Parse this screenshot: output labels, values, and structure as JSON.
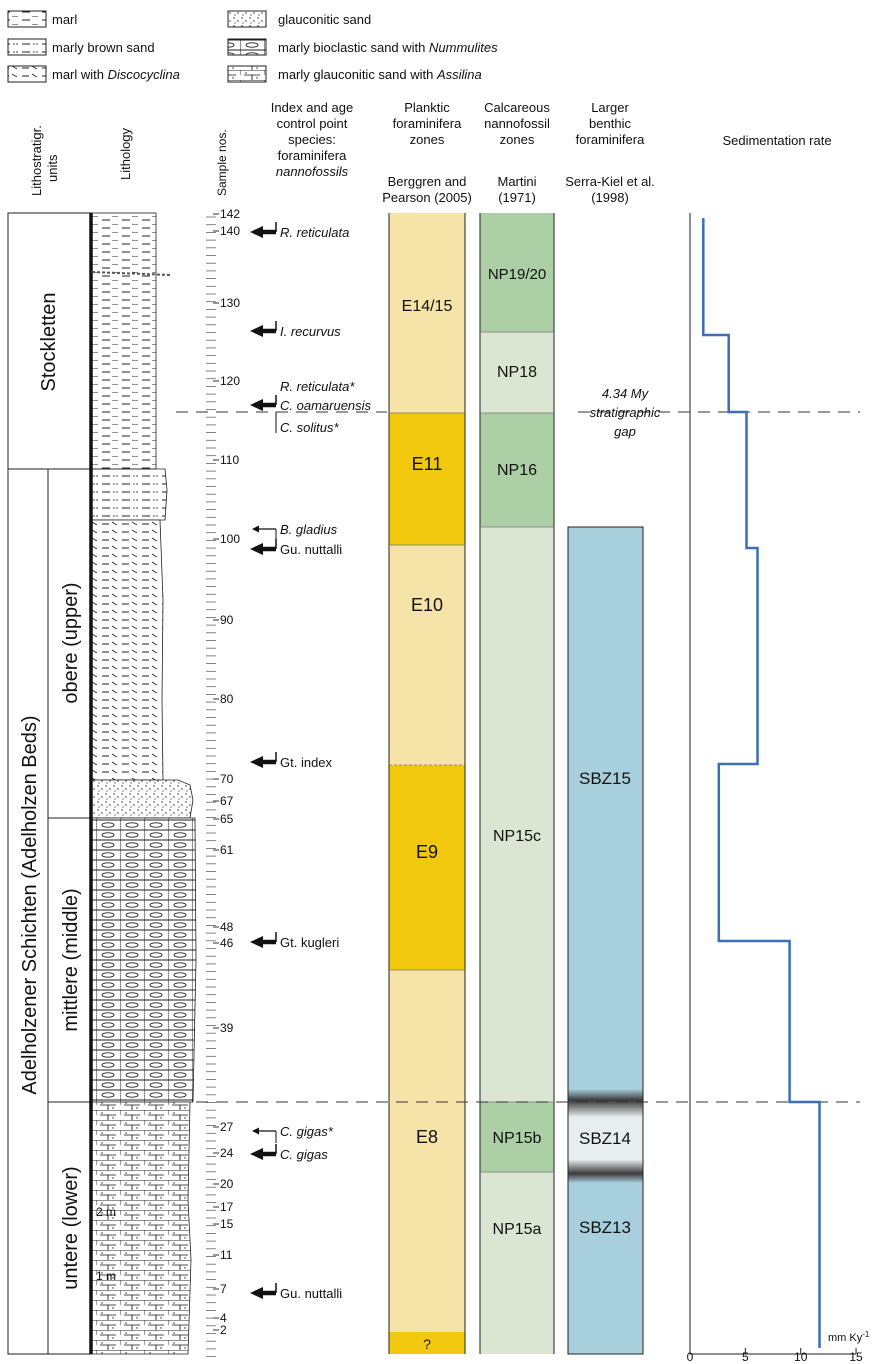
{
  "legend": [
    {
      "pattern": "marl",
      "label": "marl"
    },
    {
      "pattern": "marly-brown-sand",
      "label": "marly brown sand"
    },
    {
      "pattern": "marl-discocyclina",
      "label": "marl with ",
      "italic": "Discocyclina"
    },
    {
      "pattern": "glauconitic-sand",
      "label": "glauconitic sand"
    },
    {
      "pattern": "bioclastic",
      "label": "marly bioclastic sand with ",
      "italic": "Nummulites"
    },
    {
      "pattern": "glauc-assilina",
      "label": "marly glauconitic sand with ",
      "italic": "Assilina"
    }
  ],
  "headers": {
    "litho_units": [
      "Lithostratigr.",
      "units"
    ],
    "lithology": "Lithology",
    "sample_nos": "Sample nos.",
    "index": [
      "Index and age",
      "control point",
      "species:",
      "foraminifera"
    ],
    "index_italic": "nannofossils",
    "planktic": [
      "Planktic",
      "foraminifera",
      "zones"
    ],
    "planktic_ref": [
      "Berggren and",
      "Pearson (2005)"
    ],
    "calcareous": [
      "Calcareous",
      "nannofossil",
      "zones"
    ],
    "calcareous_ref": [
      "Martini",
      "(1971)"
    ],
    "benthic": [
      "Larger",
      "benthic",
      "foraminifera"
    ],
    "benthic_ref": [
      "Serra-Kiel et al.",
      "(1998)"
    ],
    "sed_rate": "Sedimentation rate"
  },
  "units": {
    "stockletten": "Stockletten",
    "adelholzen": "Adelholzener Schichten (Adelholzen Beds)",
    "obere": "obere (upper)",
    "mittlere": "mittlere (middle)",
    "untere": "untere (lower)"
  },
  "scale_marks": {
    "two": "2 m",
    "one": "1 m"
  },
  "sample_labels": [
    "142",
    "140",
    "130",
    "120",
    "110",
    "100",
    "90",
    "80",
    "70",
    "67",
    "65",
    "61",
    "48",
    "46",
    "39",
    "27",
    "24",
    "20",
    "17",
    "15",
    "11",
    "7",
    "4",
    "2"
  ],
  "species": [
    {
      "name": "R. reticulata",
      "italic": true
    },
    {
      "name": "I. recurvus",
      "italic": true
    },
    {
      "name": "R. reticulata*",
      "italic": true
    },
    {
      "name": "C. oamaruensis",
      "italic": true
    },
    {
      "name": "C. solitus*",
      "italic": true
    },
    {
      "name": "B. gladius",
      "italic": true
    },
    {
      "name": "Gu. nuttalli",
      "italic": false
    },
    {
      "name": "Gt. index",
      "italic": false
    },
    {
      "name": "Gt. kugleri",
      "italic": false
    },
    {
      "name": "C. gigas*",
      "italic": true
    },
    {
      "name": "C. gigas",
      "italic": true
    },
    {
      "name": "Gu. nuttalli",
      "italic": false
    }
  ],
  "planktic_zones": [
    "E14/15",
    "E11",
    "E10",
    "E9",
    "E8",
    "?"
  ],
  "nanno_zones": [
    "NP19/20",
    "NP18",
    "NP16",
    "NP15c",
    "NP15b",
    "NP15a"
  ],
  "benthic_zones": [
    "SBZ15",
    "SBZ14",
    "SBZ13"
  ],
  "gap_note": [
    "4.34 My",
    "stratigraphic",
    "gap"
  ],
  "sed_axis": {
    "ticks": [
      "0",
      "5",
      "10",
      "15"
    ],
    "unit": "mm Ky",
    "unit_sup": "-1"
  },
  "colors": {
    "light_yellow": "#f5e3a8",
    "dark_yellow": "#f2c80f",
    "light_green": "#dbe6d2",
    "mid_green": "#adcfa5",
    "blue": "#a8cfdc",
    "line": "#3f6fb3"
  }
}
